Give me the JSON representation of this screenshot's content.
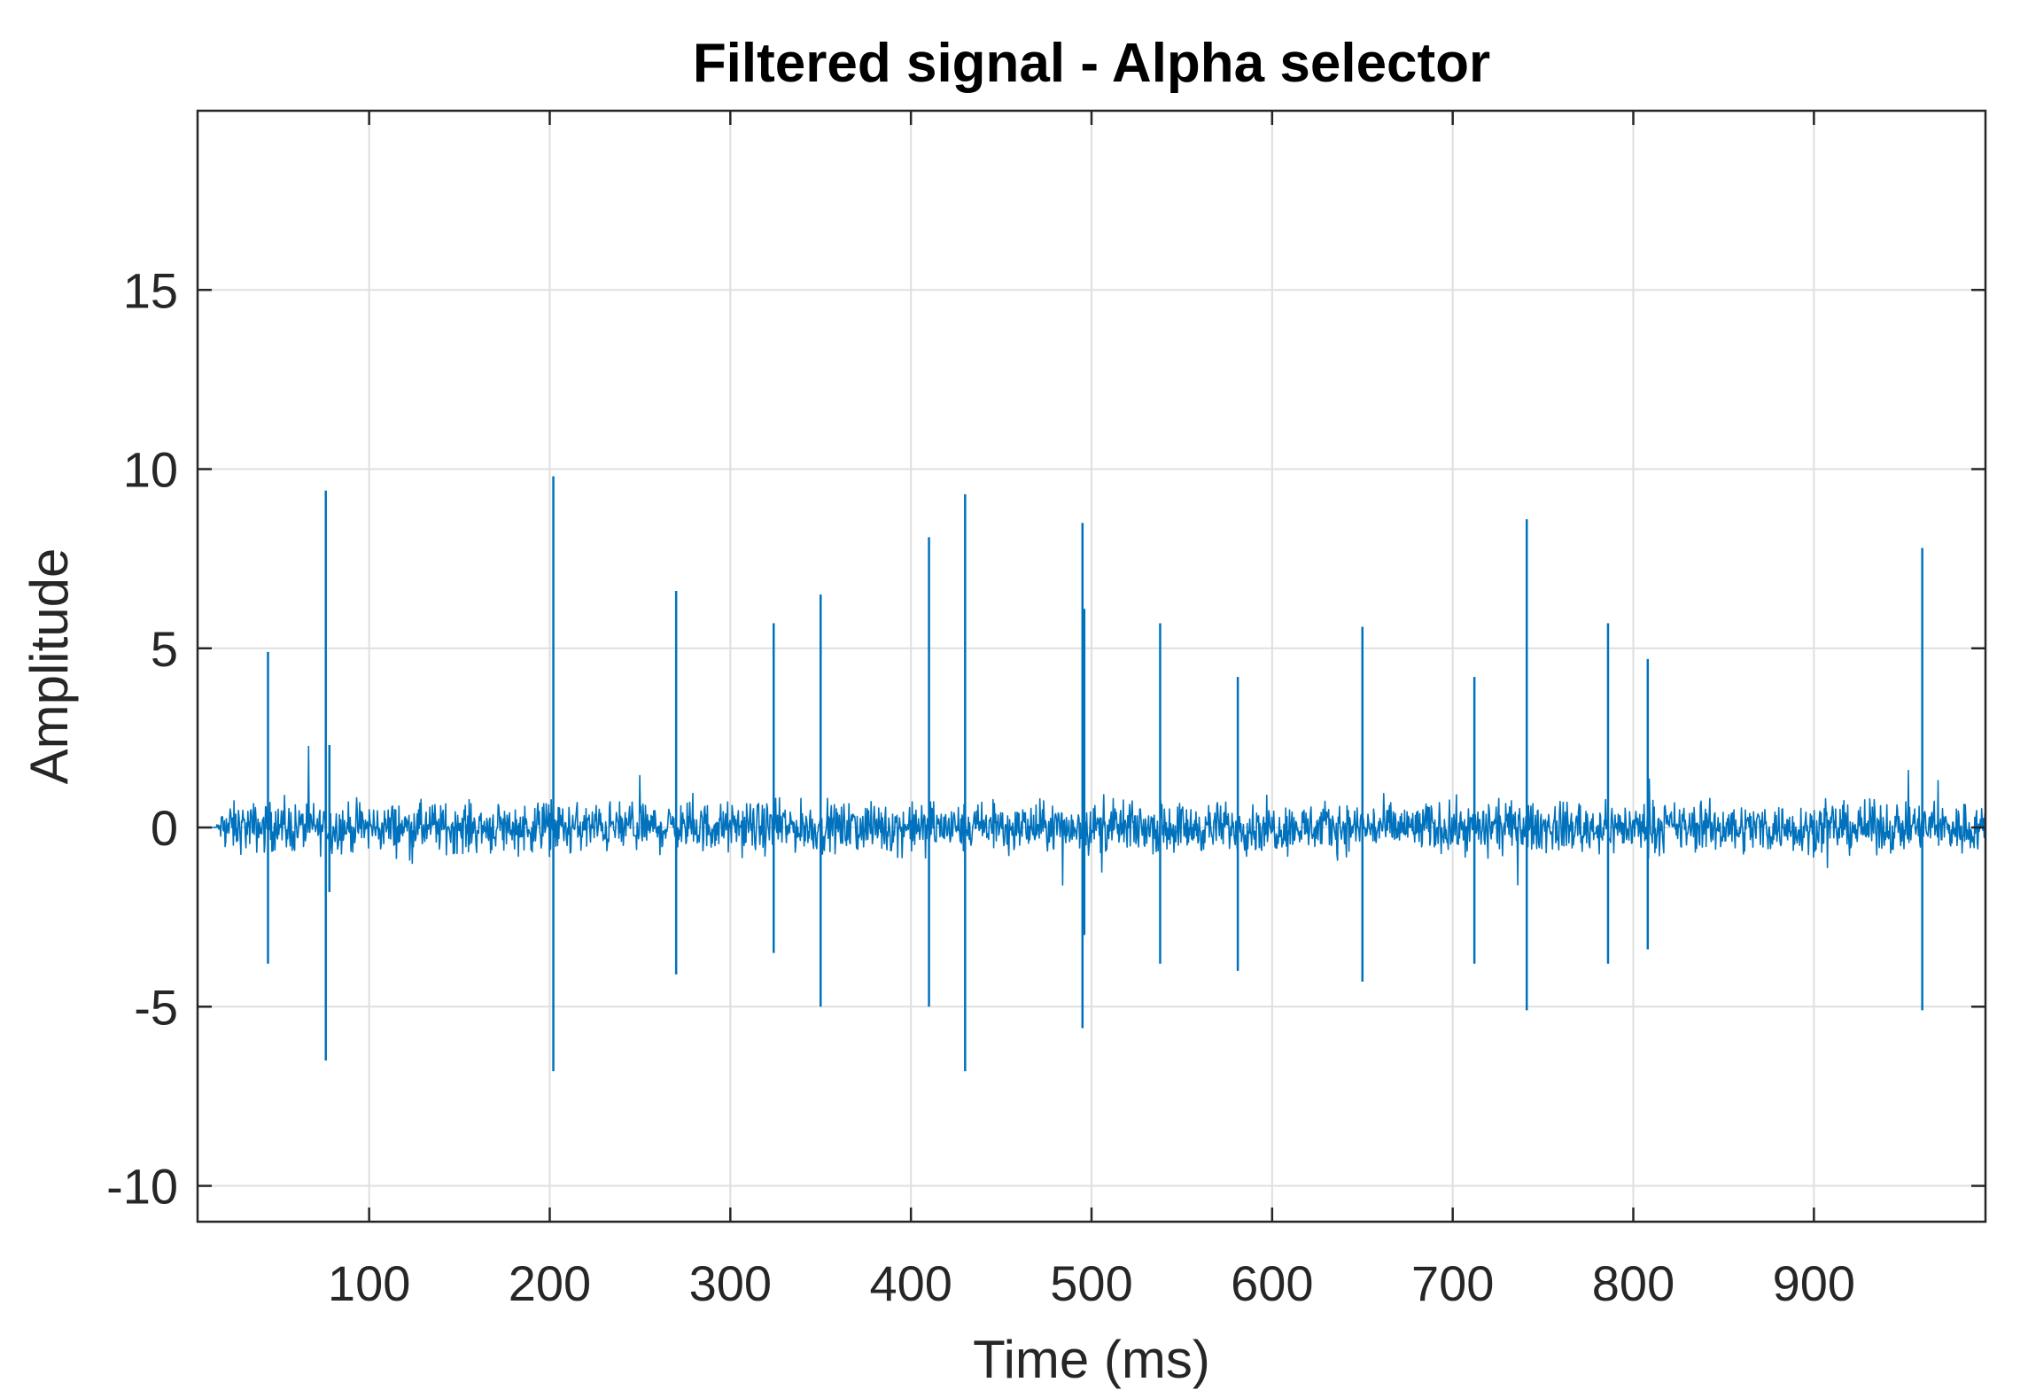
{
  "chart_data": {
    "type": "line",
    "title": "Filtered signal - Alpha selector",
    "xlabel": "Time (ms)",
    "ylabel": "Amplitude",
    "xlim": [
      5,
      995
    ],
    "ylim": [
      -11,
      20
    ],
    "grid": true,
    "x_ticks": [
      100,
      200,
      300,
      400,
      500,
      600,
      700,
      800,
      900
    ],
    "y_ticks": [
      -10,
      -5,
      0,
      5,
      10,
      15
    ],
    "x_tick_labels": [
      "100",
      "200",
      "300",
      "400",
      "500",
      "600",
      "700",
      "800",
      "900"
    ],
    "y_tick_labels": [
      "-10",
      "-5",
      "0",
      "5",
      "10",
      "15"
    ],
    "series": [
      {
        "color": "#0072BD",
        "noise_band": {
          "x_start": 15,
          "x_end": 995,
          "amplitude_typical": 1.0,
          "amplitude_max": 2.5
        },
        "spikes": [
          {
            "x": 44,
            "max": 4.9,
            "min": -3.8
          },
          {
            "x": 76,
            "max": 9.4,
            "min": -6.5
          },
          {
            "x": 78,
            "max": 2.3,
            "min": -1.8
          },
          {
            "x": 202,
            "max": 9.8,
            "min": -6.8
          },
          {
            "x": 270,
            "max": 6.6,
            "min": -4.1
          },
          {
            "x": 324,
            "max": 5.7,
            "min": -3.5
          },
          {
            "x": 350,
            "max": 6.5,
            "min": -5.0
          },
          {
            "x": 410,
            "max": 8.1,
            "min": -5.0
          },
          {
            "x": 430,
            "max": 9.3,
            "min": -6.8
          },
          {
            "x": 495,
            "max": 8.5,
            "min": -5.6
          },
          {
            "x": 496,
            "max": 6.1,
            "min": -3.0
          },
          {
            "x": 538,
            "max": 5.7,
            "min": -3.8
          },
          {
            "x": 581,
            "max": 4.2,
            "min": -4.0
          },
          {
            "x": 650,
            "max": 5.6,
            "min": -4.3
          },
          {
            "x": 712,
            "max": 4.2,
            "min": -3.8
          },
          {
            "x": 741,
            "max": 8.6,
            "min": -5.1
          },
          {
            "x": 786,
            "max": 5.7,
            "min": -3.8
          },
          {
            "x": 808,
            "max": 4.7,
            "min": -3.4
          },
          {
            "x": 960,
            "max": 7.8,
            "min": -5.1
          }
        ]
      }
    ]
  }
}
